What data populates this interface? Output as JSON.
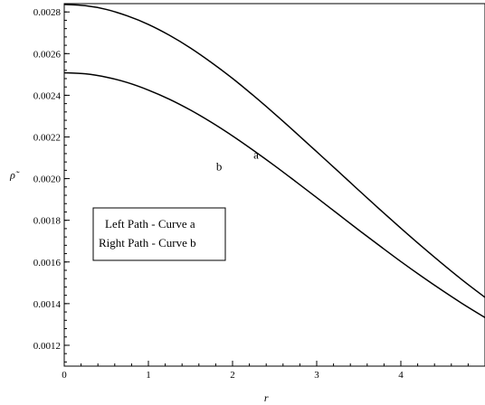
{
  "chart_data": {
    "type": "line",
    "title": "",
    "xlabel": "r",
    "ylabel": "ρ̃",
    "xlim": [
      0,
      5
    ],
    "ylim": [
      0.0011,
      0.00284
    ],
    "x_ticks": [
      0,
      1,
      2,
      3,
      4,
      5
    ],
    "x_tick_labels": [
      "0",
      "1",
      "2",
      "3",
      "4",
      ""
    ],
    "y_ticks": [
      0.0012,
      0.0014,
      0.0016,
      0.0018,
      0.002,
      0.0022,
      0.0024,
      0.0026,
      0.0028
    ],
    "y_tick_labels": [
      "0.0012",
      "0.0014",
      "0.0016",
      "0.0018",
      "0.0020",
      "0.0022",
      "0.0024",
      "0.0026",
      "0.0028"
    ],
    "grid": false,
    "series": [
      {
        "name": "a",
        "color": "#000000",
        "x": [
          0,
          0.25,
          0.5,
          0.75,
          1,
          1.25,
          1.5,
          1.75,
          2,
          2.25,
          2.5,
          2.75,
          3,
          3.25,
          3.5,
          3.75,
          4,
          4.25,
          4.5,
          4.75,
          5
        ],
        "y": [
          0.002836,
          0.00283,
          0.002812,
          0.002781,
          0.00274,
          0.002688,
          0.002627,
          0.002557,
          0.002481,
          0.002398,
          0.002311,
          0.002221,
          0.002129,
          0.002037,
          0.001944,
          0.001852,
          0.001762,
          0.001674,
          0.001589,
          0.001507,
          0.00143
        ]
      },
      {
        "name": "b",
        "color": "#000000",
        "x": [
          0,
          0.25,
          0.5,
          0.75,
          1,
          1.25,
          1.5,
          1.75,
          2,
          2.25,
          2.5,
          2.75,
          3,
          3.25,
          3.5,
          3.75,
          4,
          4.25,
          4.5,
          4.75,
          5
        ],
        "y": [
          0.002508,
          0.002503,
          0.002487,
          0.002461,
          0.002425,
          0.002381,
          0.002329,
          0.00227,
          0.002205,
          0.002135,
          0.002062,
          0.001986,
          0.001909,
          0.001831,
          0.001753,
          0.001677,
          0.001602,
          0.00153,
          0.001461,
          0.001395,
          0.001333
        ]
      }
    ],
    "annotations": [
      {
        "text": "a",
        "x": 2.28,
        "y": 0.002095
      },
      {
        "text": "b",
        "x": 1.84,
        "y": 0.002039
      }
    ],
    "legend": {
      "placement": "left",
      "lines": [
        "Left Path - Curve a",
        "Right Path - Curve b"
      ]
    }
  }
}
